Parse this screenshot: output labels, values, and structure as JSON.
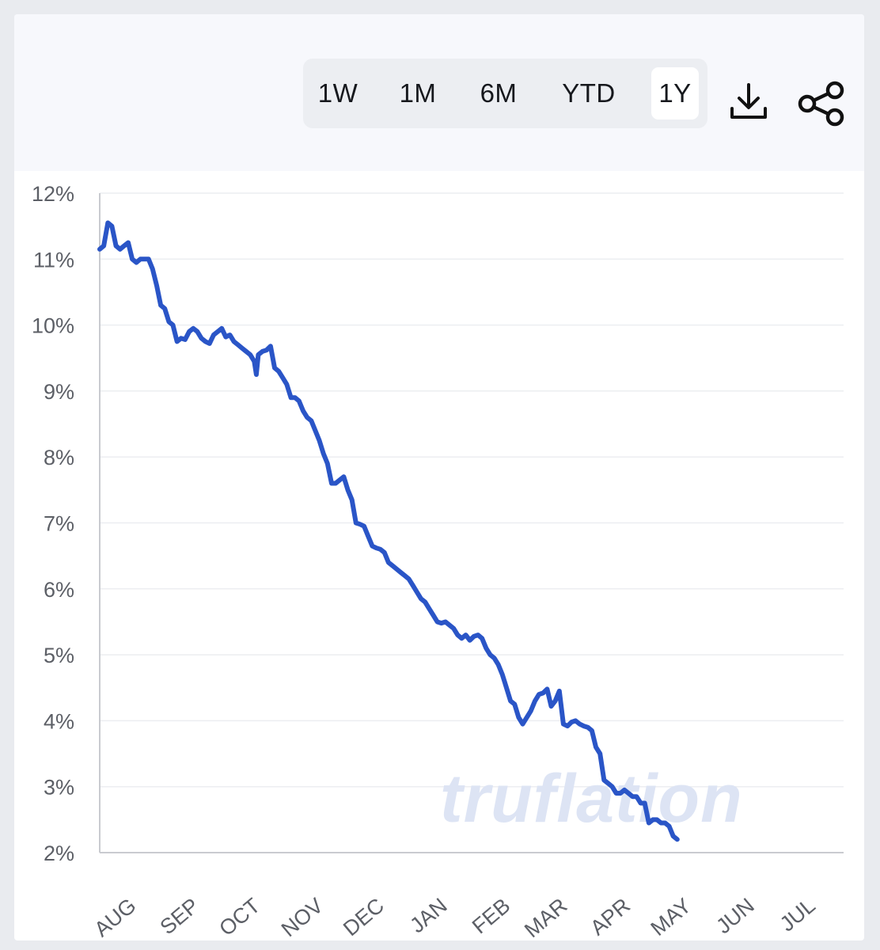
{
  "toolbar": {
    "ranges": [
      "1W",
      "1M",
      "6M",
      "YTD",
      "1Y"
    ],
    "active_range": "1Y",
    "download_icon": "download-icon",
    "share_icon": "share-icon"
  },
  "watermark": "truflation",
  "colors": {
    "line": "#2a55c7",
    "grid": "#eceef1",
    "axis": "#c9cbd0",
    "tick_text": "#5c5f66",
    "watermark": "#dde4f4"
  },
  "chart_data": {
    "type": "line",
    "ylim": [
      2,
      12
    ],
    "yticks": [
      2,
      3,
      4,
      5,
      6,
      7,
      8,
      9,
      10,
      11,
      12
    ],
    "ytick_labels": [
      "2%",
      "3%",
      "4%",
      "5%",
      "6%",
      "7%",
      "8%",
      "9%",
      "10%",
      "11%",
      "12%"
    ],
    "x_domain": [
      0,
      365
    ],
    "xticks": [
      {
        "label": "AUG",
        "x": 10
      },
      {
        "label": "SEP",
        "x": 41
      },
      {
        "label": "OCT",
        "x": 71
      },
      {
        "label": "NOV",
        "x": 102
      },
      {
        "label": "DEC",
        "x": 132
      },
      {
        "label": "JAN",
        "x": 163
      },
      {
        "label": "FEB",
        "x": 194
      },
      {
        "label": "MAR",
        "x": 222
      },
      {
        "label": "APR",
        "x": 253
      },
      {
        "label": "MAY",
        "x": 283
      },
      {
        "label": "JUN",
        "x": 314
      },
      {
        "label": "JUL",
        "x": 344
      }
    ],
    "grid": true,
    "legend": "none",
    "series": [
      {
        "values": [
          [
            0,
            11.15
          ],
          [
            2,
            11.2
          ],
          [
            4,
            11.55
          ],
          [
            6,
            11.5
          ],
          [
            8,
            11.2
          ],
          [
            10,
            11.15
          ],
          [
            12,
            11.2
          ],
          [
            14,
            11.25
          ],
          [
            16,
            11.0
          ],
          [
            18,
            10.95
          ],
          [
            20,
            11.0
          ],
          [
            24,
            11.0
          ],
          [
            26,
            10.85
          ],
          [
            28,
            10.6
          ],
          [
            30,
            10.3
          ],
          [
            32,
            10.25
          ],
          [
            34,
            10.05
          ],
          [
            36,
            10.0
          ],
          [
            38,
            9.75
          ],
          [
            40,
            9.8
          ],
          [
            42,
            9.78
          ],
          [
            44,
            9.9
          ],
          [
            46,
            9.95
          ],
          [
            48,
            9.9
          ],
          [
            50,
            9.8
          ],
          [
            52,
            9.75
          ],
          [
            54,
            9.72
          ],
          [
            56,
            9.85
          ],
          [
            58,
            9.9
          ],
          [
            60,
            9.95
          ],
          [
            62,
            9.82
          ],
          [
            64,
            9.85
          ],
          [
            66,
            9.75
          ],
          [
            68,
            9.7
          ],
          [
            70,
            9.65
          ],
          [
            72,
            9.6
          ],
          [
            74,
            9.55
          ],
          [
            76,
            9.45
          ],
          [
            77,
            9.25
          ],
          [
            78,
            9.55
          ],
          [
            80,
            9.6
          ],
          [
            82,
            9.62
          ],
          [
            84,
            9.68
          ],
          [
            86,
            9.35
          ],
          [
            88,
            9.3
          ],
          [
            90,
            9.2
          ],
          [
            92,
            9.1
          ],
          [
            94,
            8.9
          ],
          [
            96,
            8.9
          ],
          [
            98,
            8.85
          ],
          [
            100,
            8.7
          ],
          [
            102,
            8.6
          ],
          [
            104,
            8.55
          ],
          [
            106,
            8.4
          ],
          [
            108,
            8.25
          ],
          [
            110,
            8.05
          ],
          [
            112,
            7.9
          ],
          [
            114,
            7.6
          ],
          [
            116,
            7.6
          ],
          [
            118,
            7.65
          ],
          [
            120,
            7.7
          ],
          [
            122,
            7.5
          ],
          [
            124,
            7.35
          ],
          [
            126,
            7.0
          ],
          [
            128,
            6.98
          ],
          [
            130,
            6.95
          ],
          [
            132,
            6.8
          ],
          [
            134,
            6.65
          ],
          [
            136,
            6.62
          ],
          [
            138,
            6.6
          ],
          [
            140,
            6.55
          ],
          [
            142,
            6.4
          ],
          [
            144,
            6.35
          ],
          [
            146,
            6.3
          ],
          [
            148,
            6.25
          ],
          [
            150,
            6.2
          ],
          [
            152,
            6.15
          ],
          [
            154,
            6.05
          ],
          [
            156,
            5.95
          ],
          [
            158,
            5.85
          ],
          [
            160,
            5.8
          ],
          [
            162,
            5.7
          ],
          [
            164,
            5.6
          ],
          [
            166,
            5.5
          ],
          [
            168,
            5.48
          ],
          [
            170,
            5.5
          ],
          [
            172,
            5.45
          ],
          [
            174,
            5.4
          ],
          [
            176,
            5.3
          ],
          [
            178,
            5.25
          ],
          [
            180,
            5.3
          ],
          [
            182,
            5.22
          ],
          [
            184,
            5.28
          ],
          [
            186,
            5.3
          ],
          [
            188,
            5.25
          ],
          [
            190,
            5.1
          ],
          [
            192,
            5.0
          ],
          [
            194,
            4.95
          ],
          [
            196,
            4.85
          ],
          [
            198,
            4.7
          ],
          [
            200,
            4.5
          ],
          [
            202,
            4.3
          ],
          [
            204,
            4.25
          ],
          [
            206,
            4.05
          ],
          [
            208,
            3.95
          ],
          [
            210,
            4.05
          ],
          [
            212,
            4.15
          ],
          [
            214,
            4.3
          ],
          [
            216,
            4.4
          ],
          [
            218,
            4.42
          ],
          [
            220,
            4.48
          ],
          [
            222,
            4.22
          ],
          [
            224,
            4.3
          ],
          [
            226,
            4.45
          ],
          [
            228,
            3.95
          ],
          [
            230,
            3.92
          ],
          [
            232,
            3.98
          ],
          [
            234,
            4.0
          ],
          [
            236,
            3.95
          ],
          [
            238,
            3.92
          ],
          [
            240,
            3.9
          ],
          [
            242,
            3.85
          ],
          [
            244,
            3.6
          ],
          [
            246,
            3.5
          ],
          [
            248,
            3.1
          ],
          [
            250,
            3.05
          ],
          [
            252,
            3.0
          ],
          [
            254,
            2.9
          ],
          [
            256,
            2.9
          ],
          [
            258,
            2.95
          ],
          [
            260,
            2.9
          ],
          [
            262,
            2.85
          ],
          [
            264,
            2.85
          ],
          [
            266,
            2.75
          ],
          [
            268,
            2.75
          ],
          [
            270,
            2.45
          ],
          [
            272,
            2.5
          ],
          [
            274,
            2.5
          ],
          [
            276,
            2.45
          ],
          [
            278,
            2.45
          ],
          [
            280,
            2.4
          ],
          [
            282,
            2.25
          ],
          [
            284,
            2.2
          ]
        ]
      }
    ]
  }
}
